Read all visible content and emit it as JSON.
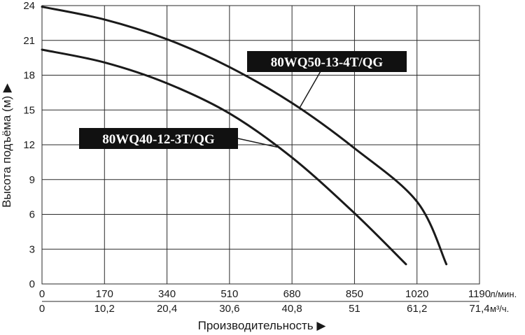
{
  "chart_data": {
    "type": "line",
    "title": "",
    "ylabel": "Высота подъёма (м) ▶",
    "xlabel": "Производительность ▶",
    "ylim": [
      0,
      24
    ],
    "yticks": [
      "0",
      "3",
      "6",
      "9",
      "12",
      "15",
      "18",
      "21",
      "24"
    ],
    "xlim": [
      0,
      1190
    ],
    "xticks_top": [
      "0",
      "170",
      "340",
      "510",
      "680",
      "850",
      "1020",
      "1190"
    ],
    "xticks_bottom": [
      "0",
      "10,2",
      "20,4",
      "30,6",
      "40,8",
      "51",
      "61,2",
      "71,4"
    ],
    "x_unit_top": "л/мин.",
    "x_unit_bottom": "м³/ч.",
    "grid": true,
    "series": [
      {
        "name": "80WQ50-13-4T/QG",
        "x": [
          0,
          170,
          340,
          510,
          680,
          850,
          1020,
          1100
        ],
        "y": [
          23.9,
          22.8,
          21.1,
          18.7,
          15.6,
          11.7,
          7.1,
          1.7
        ]
      },
      {
        "name": "80WQ40-12-3T/QG",
        "x": [
          0,
          170,
          340,
          510,
          680,
          850,
          990
        ],
        "y": [
          20.2,
          19.1,
          17.3,
          14.7,
          10.9,
          6.1,
          1.7
        ]
      }
    ]
  }
}
